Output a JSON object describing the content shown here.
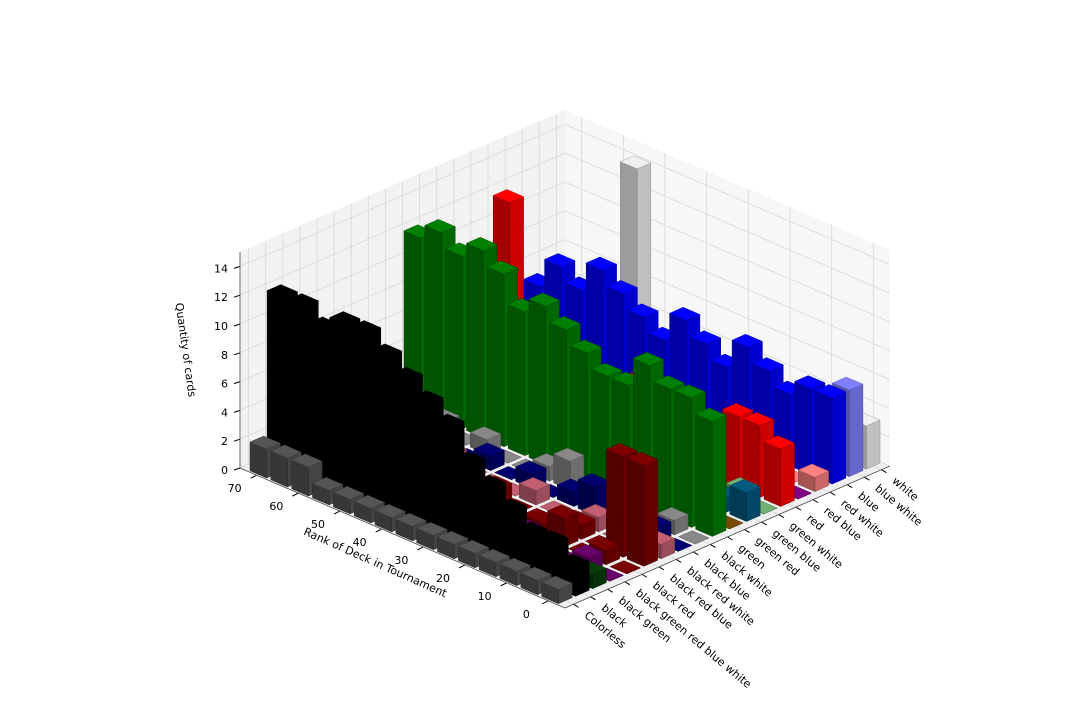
{
  "chart_data": {
    "type": "bar3d",
    "xlabel": "Rank of Deck in Tournament",
    "zlabel": "Quantity of cards",
    "x": [
      0,
      5,
      10,
      15,
      20,
      25,
      30,
      35,
      40,
      45,
      50,
      55,
      60,
      65,
      70
    ],
    "xlim": [
      -4,
      74
    ],
    "xticks": [
      0,
      10,
      20,
      30,
      40,
      50,
      60,
      70
    ],
    "zlim": [
      0,
      15
    ],
    "zticks": [
      0,
      2,
      4,
      6,
      8,
      10,
      12,
      14
    ],
    "grid": true,
    "series": [
      {
        "name": "Colorless",
        "color": "#555555",
        "values": [
          1,
          1,
          1,
          1,
          1,
          1,
          1,
          1,
          1,
          1,
          1,
          1,
          2,
          2,
          2
        ]
      },
      {
        "name": "black",
        "color": "#000000",
        "values": [
          2,
          3,
          3,
          4,
          5,
          6,
          8,
          9,
          10,
          11,
          12,
          12,
          11,
          12,
          12
        ]
      },
      {
        "name": "black green",
        "color": "#0a3d0a",
        "values": [
          1,
          0,
          1,
          0,
          0,
          1,
          1,
          0,
          1,
          0,
          0,
          1,
          0,
          0,
          1
        ]
      },
      {
        "name": "black green red blue white",
        "color": "#6a006a",
        "values": [
          0,
          1,
          0,
          0,
          1,
          0,
          0,
          1,
          0,
          0,
          0,
          0,
          1,
          0,
          0
        ]
      },
      {
        "name": "black red",
        "color": "#7a0000",
        "values": [
          0,
          1,
          0,
          2,
          1,
          0,
          1,
          0,
          2,
          0,
          1,
          0,
          0,
          1,
          0
        ]
      },
      {
        "name": "black red blue",
        "color": "#800000",
        "values": [
          7,
          7,
          0,
          1,
          0,
          0,
          0,
          1,
          0,
          0,
          0,
          0,
          0,
          0,
          0
        ]
      },
      {
        "name": "black red white",
        "color": "#c06070",
        "values": [
          1,
          0,
          0,
          1,
          0,
          0,
          1,
          0,
          0,
          0,
          1,
          0,
          0,
          0,
          0
        ]
      },
      {
        "name": "black blue",
        "color": "#000070",
        "values": [
          0,
          1,
          1,
          0,
          2,
          1,
          0,
          1,
          0,
          1,
          0,
          1,
          1,
          2,
          0
        ]
      },
      {
        "name": "black white",
        "color": "#888888",
        "values": [
          0,
          1,
          0,
          2,
          1,
          0,
          2,
          1,
          0,
          0,
          1,
          0,
          1,
          0,
          0
        ]
      },
      {
        "name": "green",
        "color": "#008000",
        "values": [
          8,
          9,
          9,
          10,
          8,
          8,
          9,
          10,
          11,
          10,
          12,
          13,
          12,
          13,
          12
        ]
      },
      {
        "name": "green red",
        "color": "#7a4a00",
        "values": [
          0,
          0,
          1,
          0,
          0,
          0,
          1,
          0,
          0,
          0,
          0,
          0,
          1,
          0,
          1
        ]
      },
      {
        "name": "green blue",
        "color": "#005a80",
        "values": [
          2,
          1,
          0,
          3,
          2,
          2,
          1,
          3,
          2,
          4,
          3,
          2,
          3,
          4,
          2
        ]
      },
      {
        "name": "green white",
        "color": "#70b070",
        "values": [
          0,
          1,
          0,
          0,
          0,
          1,
          0,
          2,
          0,
          0,
          1,
          0,
          0,
          1,
          0
        ]
      },
      {
        "name": "red",
        "color": "#ff0000",
        "values": [
          4,
          5,
          5,
          3,
          2,
          3,
          2,
          4,
          3,
          2,
          1,
          2,
          4,
          13,
          2
        ]
      },
      {
        "name": "red blue",
        "color": "#800080",
        "values": [
          0,
          1,
          0,
          1,
          0,
          1,
          0,
          0,
          1,
          0,
          0,
          0,
          1,
          0,
          0
        ]
      },
      {
        "name": "red white",
        "color": "#ff8080",
        "values": [
          1,
          0,
          0,
          1,
          0,
          0,
          0,
          0,
          1,
          0,
          0,
          0,
          0,
          0,
          0
        ]
      },
      {
        "name": "blue",
        "color": "#0000ff",
        "values": [
          6,
          6,
          5,
          6,
          7,
          5,
          6,
          7,
          5,
          6,
          7,
          8,
          6,
          7,
          5
        ]
      },
      {
        "name": "blue white",
        "color": "#8080ff",
        "values": [
          6,
          0,
          0,
          1,
          0,
          3,
          0,
          0,
          2,
          0,
          0,
          0,
          4,
          0,
          0
        ]
      },
      {
        "name": "white",
        "color": "#f0f0f0",
        "values": [
          3,
          0,
          0,
          0,
          0,
          0,
          0,
          0,
          0,
          0,
          0,
          14,
          0,
          0,
          0
        ]
      }
    ]
  }
}
